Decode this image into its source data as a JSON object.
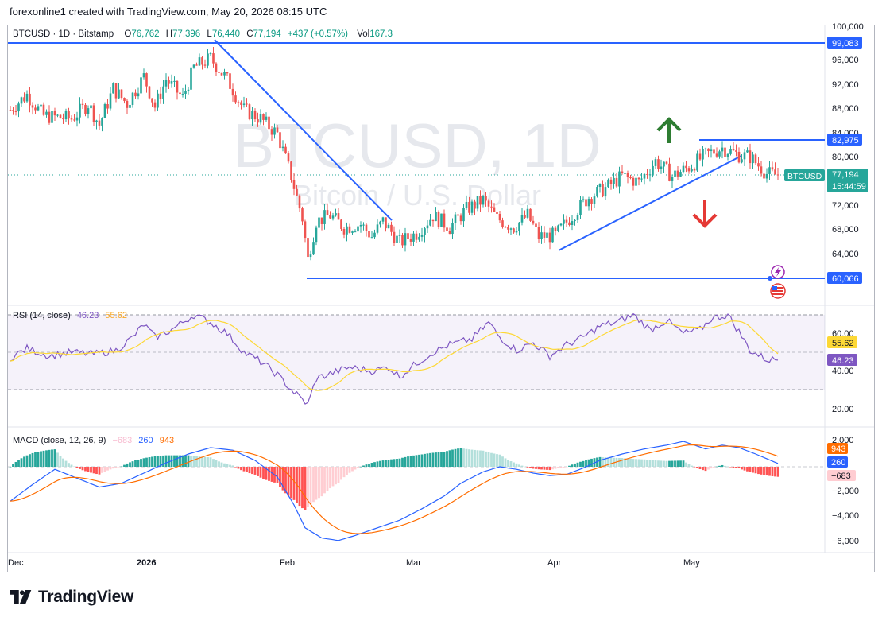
{
  "header": {
    "credit": "forexonline1 created with TradingView.com, May 20, 2026 08:15 UTC",
    "symbol": "BTCUSD · 1D · Bitstamp",
    "o_label": "O",
    "o_val": "76,762",
    "h_label": "H",
    "h_val": "77,396",
    "l_label": "L",
    "l_val": "76,440",
    "c_label": "C",
    "c_val": "77,194",
    "change": "+437 (+0.57%)",
    "vol_label": "Vol",
    "vol_val": "167.3"
  },
  "watermark": {
    "symbol": "BTCUSD, 1D",
    "description": "Bitcoin / U.S. Dollar"
  },
  "colors": {
    "up": "#26a69a",
    "down": "#ef5350",
    "line_blue": "#2962ff",
    "rsi": "#7e57c2",
    "rsi_ma": "#fdd835",
    "macd": "#2962ff",
    "signal": "#ff6d00",
    "arrow_up": "#2e7d32",
    "arrow_down": "#e53935"
  },
  "price_axis": {
    "ticks": [
      "100,000",
      "96,000",
      "92,000",
      "88,000",
      "84,000",
      "80,000",
      "72,000",
      "68,000",
      "64,000"
    ],
    "labels": {
      "top": "99,083",
      "mid": "82,975",
      "low": "60,066"
    },
    "current": {
      "symbol": "BTCUSD",
      "price": "77,194",
      "countdown": "15:44:59"
    }
  },
  "time_axis": [
    "Dec",
    "2026",
    "Feb",
    "Mar",
    "Apr",
    "May"
  ],
  "rsi": {
    "title": "RSI (14, close)",
    "value": "46.23",
    "ma_value": "55.62",
    "ticks": [
      "60.00",
      "40.00",
      "20.00"
    ]
  },
  "macd": {
    "title": "MACD (close, 12, 26, 9)",
    "hist": "−683",
    "macd": "260",
    "signal": "943",
    "ticks": [
      "2,000",
      "−2,000",
      "−4,000",
      "−6,000"
    ]
  },
  "branding": {
    "name": "TradingView"
  },
  "chart_data": {
    "type": "candlestick",
    "symbol": "BTCUSD",
    "interval": "1D",
    "exchange": "Bitstamp",
    "ylim": [
      57000,
      100500
    ],
    "levels": [
      99083,
      82975,
      60066
    ],
    "current_price": 77194,
    "anchors": [
      [
        0,
        88000
      ],
      [
        6,
        90500
      ],
      [
        12,
        87000
      ],
      [
        22,
        86500
      ],
      [
        28,
        89000
      ],
      [
        32,
        85500
      ],
      [
        37,
        91500
      ],
      [
        42,
        89000
      ],
      [
        48,
        93500
      ],
      [
        52,
        88500
      ],
      [
        56,
        93000
      ],
      [
        62,
        90000
      ],
      [
        66,
        95000
      ],
      [
        72,
        96500
      ],
      [
        78,
        93000
      ],
      [
        84,
        88000
      ],
      [
        90,
        86500
      ],
      [
        96,
        84000
      ],
      [
        101,
        77000
      ],
      [
        105,
        70000
      ],
      [
        107,
        63200
      ],
      [
        110,
        69500
      ],
      [
        115,
        70500
      ],
      [
        120,
        68500
      ],
      [
        126,
        69000
      ],
      [
        130,
        67000
      ],
      [
        134,
        69500
      ],
      [
        140,
        66000
      ],
      [
        146,
        67500
      ],
      [
        152,
        70500
      ],
      [
        158,
        68500
      ],
      [
        164,
        71500
      ],
      [
        170,
        73000
      ],
      [
        175,
        70000
      ],
      [
        181,
        68500
      ],
      [
        186,
        70500
      ],
      [
        190,
        67000
      ],
      [
        196,
        67200
      ],
      [
        202,
        70500
      ],
      [
        208,
        73500
      ],
      [
        214,
        75000
      ],
      [
        220,
        77000
      ],
      [
        226,
        76000
      ],
      [
        232,
        79500
      ],
      [
        238,
        77000
      ],
      [
        244,
        78500
      ],
      [
        250,
        80500
      ],
      [
        256,
        81700
      ],
      [
        262,
        80500
      ],
      [
        266,
        80200
      ],
      [
        272,
        77400
      ],
      [
        276,
        77194
      ]
    ],
    "rsi_anchors": [
      [
        0,
        47
      ],
      [
        6,
        52
      ],
      [
        14,
        48
      ],
      [
        22,
        50
      ],
      [
        30,
        49
      ],
      [
        38,
        51
      ],
      [
        44,
        58
      ],
      [
        48,
        65
      ],
      [
        52,
        58
      ],
      [
        58,
        62
      ],
      [
        66,
        70
      ],
      [
        72,
        66
      ],
      [
        78,
        60
      ],
      [
        84,
        50
      ],
      [
        90,
        45
      ],
      [
        96,
        38
      ],
      [
        101,
        30
      ],
      [
        104,
        26
      ],
      [
        107,
        22
      ],
      [
        110,
        36
      ],
      [
        116,
        39
      ],
      [
        122,
        42
      ],
      [
        130,
        40
      ],
      [
        136,
        42
      ],
      [
        140,
        37
      ],
      [
        146,
        44
      ],
      [
        152,
        50
      ],
      [
        158,
        54
      ],
      [
        166,
        57
      ],
      [
        172,
        66
      ],
      [
        176,
        58
      ],
      [
        182,
        51
      ],
      [
        188,
        55
      ],
      [
        194,
        48
      ],
      [
        200,
        54
      ],
      [
        206,
        58
      ],
      [
        212,
        64
      ],
      [
        218,
        66
      ],
      [
        224,
        70
      ],
      [
        230,
        62
      ],
      [
        236,
        67
      ],
      [
        242,
        60
      ],
      [
        248,
        62
      ],
      [
        252,
        68
      ],
      [
        258,
        70
      ],
      [
        262,
        61
      ],
      [
        266,
        51
      ],
      [
        272,
        46
      ],
      [
        276,
        46.23
      ]
    ],
    "macd_anchors": [
      [
        0,
        -2700
      ],
      [
        8,
        -1400
      ],
      [
        16,
        -200
      ],
      [
        24,
        -900
      ],
      [
        32,
        -1600
      ],
      [
        40,
        -1300
      ],
      [
        48,
        -500
      ],
      [
        56,
        300
      ],
      [
        64,
        1000
      ],
      [
        72,
        1500
      ],
      [
        80,
        1300
      ],
      [
        88,
        500
      ],
      [
        96,
        -800
      ],
      [
        102,
        -3000
      ],
      [
        106,
        -4800
      ],
      [
        112,
        -5600
      ],
      [
        118,
        -5800
      ],
      [
        124,
        -5400
      ],
      [
        132,
        -4800
      ],
      [
        140,
        -4200
      ],
      [
        148,
        -3300
      ],
      [
        156,
        -2300
      ],
      [
        162,
        -1300
      ],
      [
        170,
        -400
      ],
      [
        176,
        0
      ],
      [
        182,
        -200
      ],
      [
        188,
        -500
      ],
      [
        194,
        -700
      ],
      [
        200,
        -600
      ],
      [
        206,
        -100
      ],
      [
        212,
        500
      ],
      [
        220,
        1000
      ],
      [
        228,
        1400
      ],
      [
        236,
        1700
      ],
      [
        242,
        2000
      ],
      [
        250,
        1400
      ],
      [
        256,
        1700
      ],
      [
        262,
        1500
      ],
      [
        268,
        1000
      ],
      [
        276,
        260
      ]
    ]
  }
}
